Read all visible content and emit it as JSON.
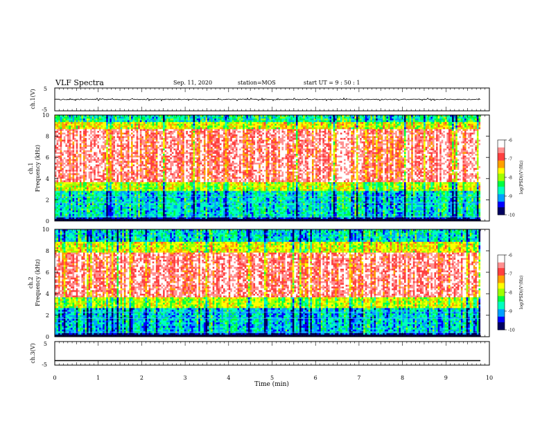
{
  "header": {
    "title": "VLF Spectra",
    "date": "Sep. 11, 2020",
    "station": "station=MOS",
    "start": "start  UT =   9 : 50 : 1"
  },
  "chart_data": [
    {
      "type": "line",
      "ylabel": "ch.1(V)",
      "ylim": [
        -5,
        5
      ],
      "yticks": [
        "5",
        "-5"
      ],
      "xlim": [
        0,
        10
      ],
      "series": [
        {
          "description_level": 0,
          "values_note": "flat trace near 0"
        }
      ]
    },
    {
      "type": "heatmap",
      "ylabel_lines": [
        "ch.1",
        "Frequency  (kHz)"
      ],
      "ylim": [
        0,
        10
      ],
      "yticks": [
        "0",
        "2",
        "4",
        "6",
        "8",
        "10"
      ],
      "xlim": [
        0,
        10
      ],
      "colorbar": {
        "label": "log(PSD)(V²/Hz)",
        "range": [
          -10,
          -6
        ],
        "ticks": [
          "-6",
          "-7",
          "-8",
          "-9",
          "-10"
        ],
        "colors": [
          "#000060",
          "#0000ff",
          "#00a0ff",
          "#00ffc0",
          "#00ff40",
          "#a0ff00",
          "#ffff00",
          "#ffa000",
          "#ff4040",
          "#ff9090",
          "#ffffff"
        ]
      },
      "bands": [
        {
          "f_low": 0,
          "f_high": 0.4,
          "level": -9.6
        },
        {
          "f_low": 0.4,
          "f_high": 2.8,
          "level": -8.8
        },
        {
          "f_low": 2.8,
          "f_high": 3.6,
          "level": -7.9
        },
        {
          "f_low": 3.6,
          "f_high": 8.6,
          "level": -6.6
        },
        {
          "f_low": 8.6,
          "f_high": 9.3,
          "level": -7.7
        },
        {
          "f_low": 9.3,
          "f_high": 10,
          "level": -8.6
        }
      ]
    },
    {
      "type": "heatmap",
      "ylabel_lines": [
        "ch.2",
        "Frequency  (kHz)"
      ],
      "ylim": [
        0,
        10
      ],
      "yticks": [
        "0",
        "2",
        "4",
        "6",
        "8",
        "10"
      ],
      "xlim": [
        0,
        10
      ],
      "colorbar": {
        "label": "log(PSD)(V²/Hz)",
        "range": [
          -10,
          -6
        ],
        "ticks": [
          "-6",
          "-7",
          "-8",
          "-9",
          "-10"
        ]
      },
      "bands": [
        {
          "f_low": 0,
          "f_high": 0.4,
          "level": -9.6
        },
        {
          "f_low": 0.4,
          "f_high": 2.6,
          "level": -8.9
        },
        {
          "f_low": 2.6,
          "f_high": 3.6,
          "level": -7.9
        },
        {
          "f_low": 3.6,
          "f_high": 7.8,
          "level": -6.6
        },
        {
          "f_low": 7.8,
          "f_high": 8.8,
          "level": -7.7
        },
        {
          "f_low": 8.8,
          "f_high": 10,
          "level": -8.8
        }
      ]
    },
    {
      "type": "line",
      "ylabel": "ch.3(V)",
      "ylim": [
        -5,
        5
      ],
      "yticks": [
        "5",
        "-5"
      ],
      "xlim": [
        0,
        10
      ],
      "series": [
        {
          "level": -3.5
        }
      ]
    }
  ],
  "xaxis": {
    "label": "Time  (min)",
    "ticks": [
      "0",
      "1",
      "2",
      "3",
      "4",
      "5",
      "6",
      "7",
      "8",
      "9",
      "10"
    ]
  }
}
